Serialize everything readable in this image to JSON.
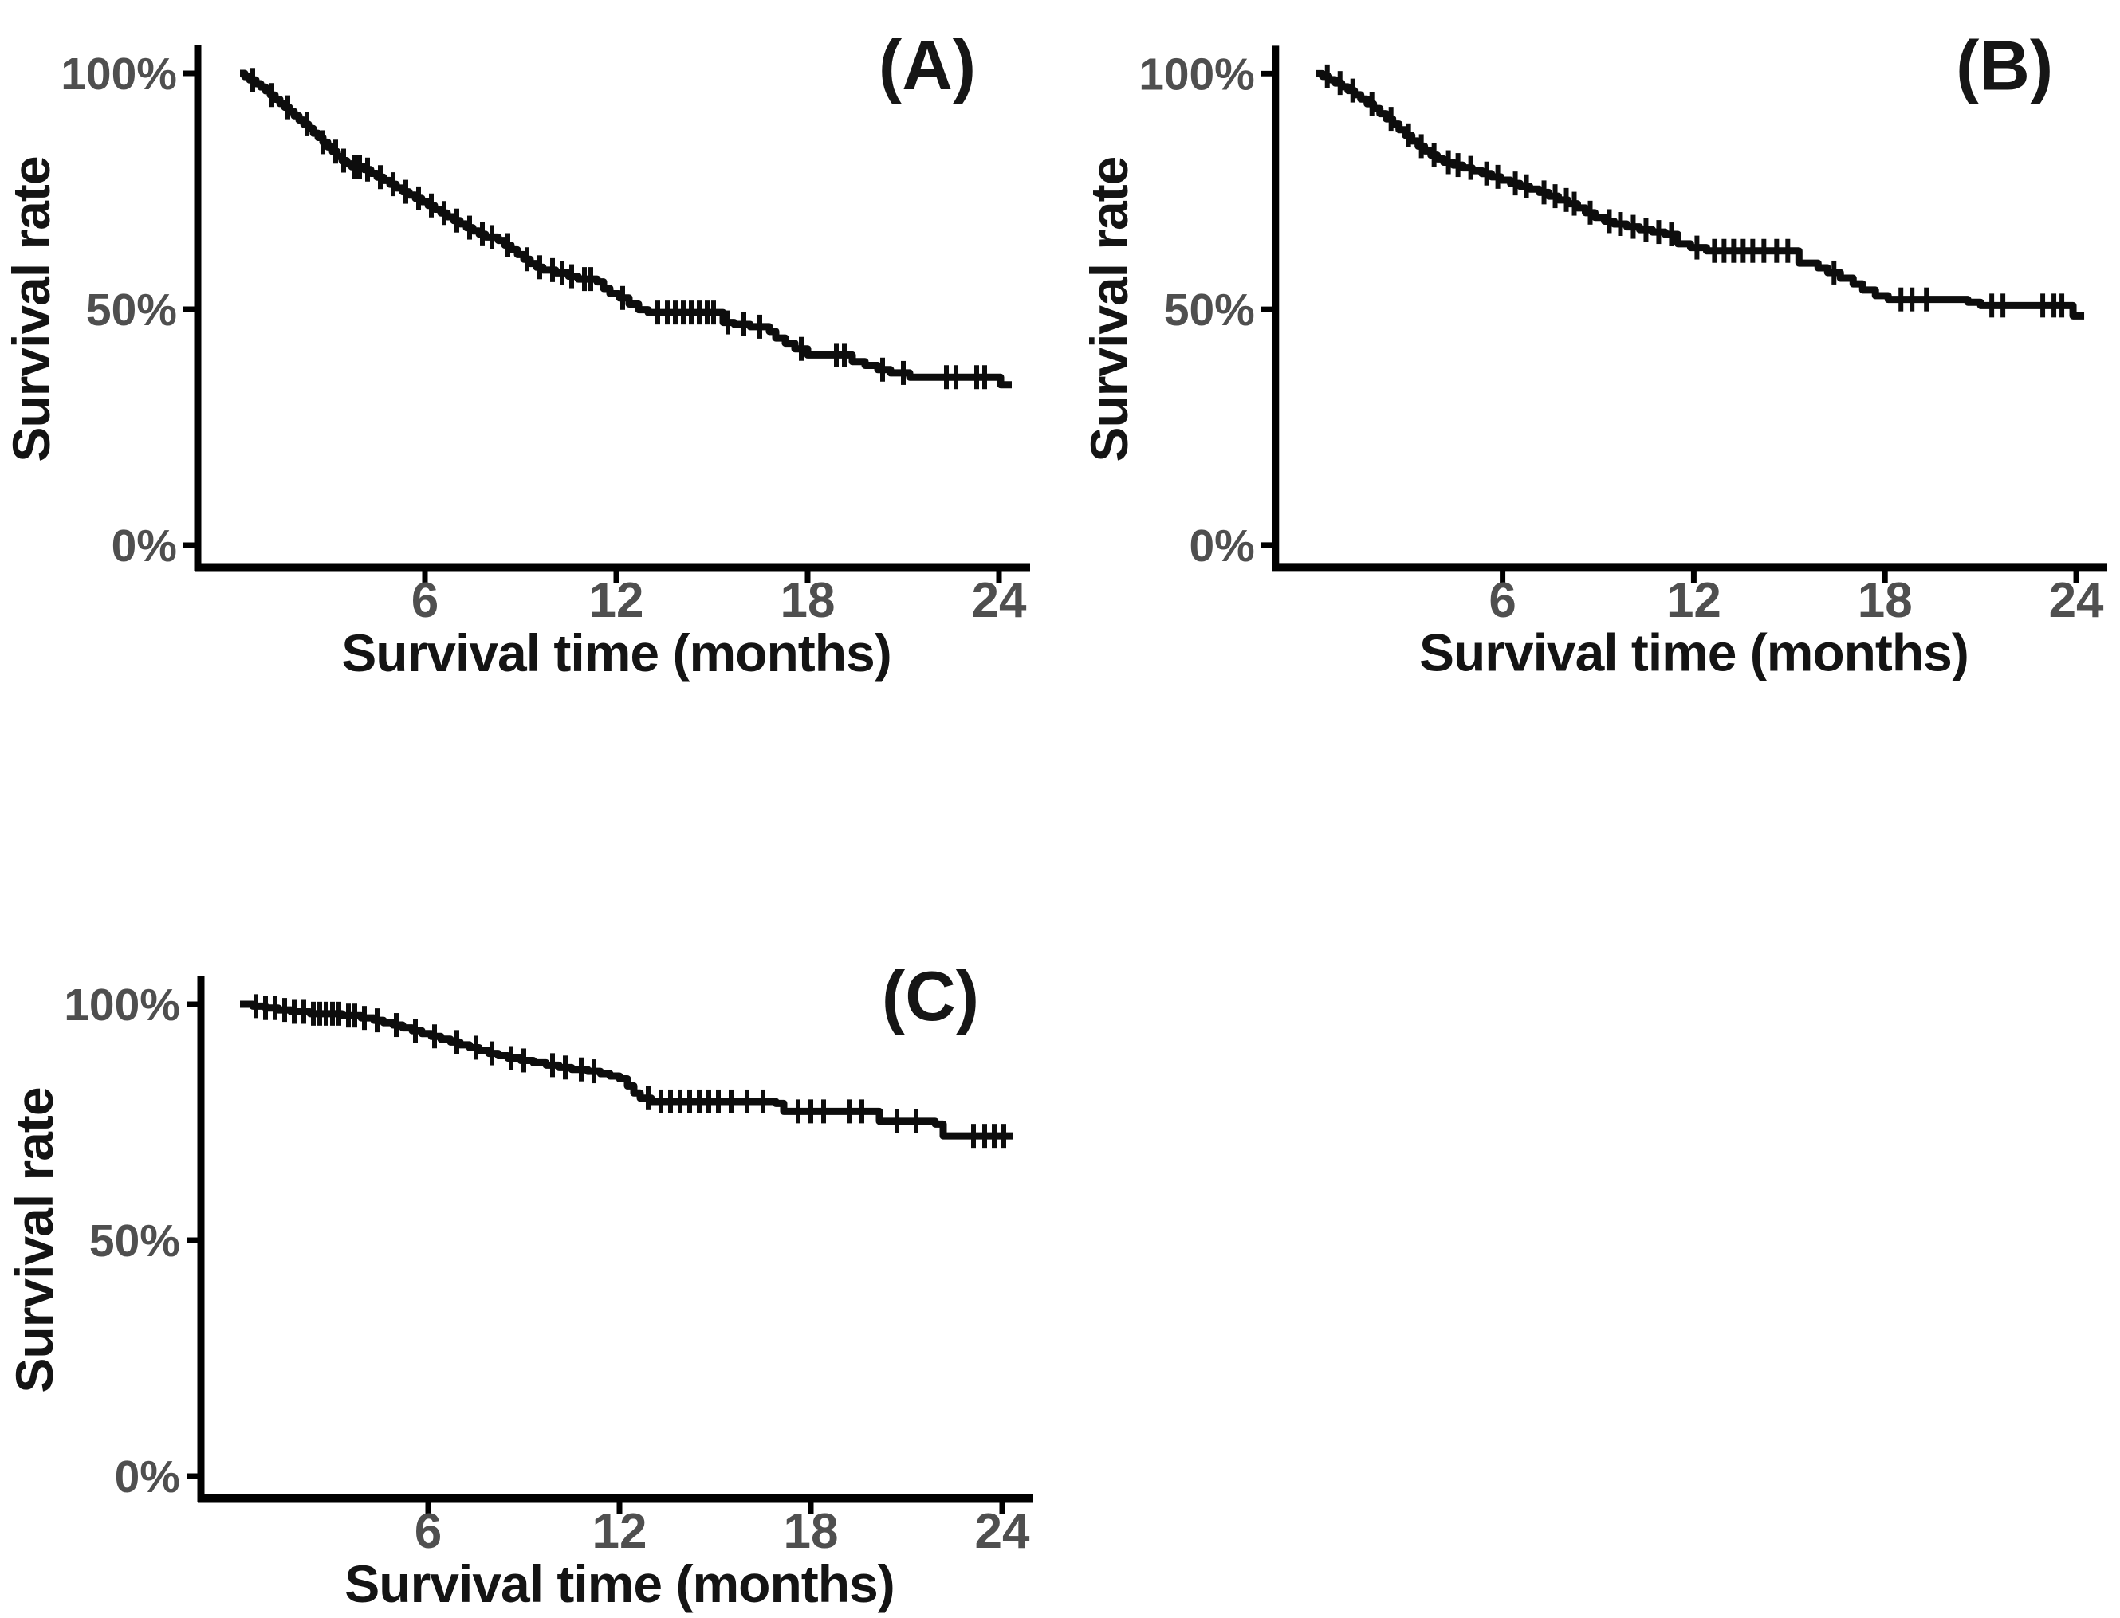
{
  "figure": {
    "background": "#ffffff",
    "axis_color": "#000000",
    "tick_label_color": "#4f4f4f",
    "text_color": "#141414",
    "curve_color": "#0d0d0d",
    "ylabel": "Survival rate",
    "xlabel": "Survival time (months)",
    "yticks": [
      {
        "label": "100%",
        "value": 100
      },
      {
        "label": "50%",
        "value": 50
      },
      {
        "label": "0%",
        "value": 0
      }
    ],
    "xticks": [
      {
        "label": "6",
        "value": 6
      },
      {
        "label": "12",
        "value": 12
      },
      {
        "label": "18",
        "value": 18
      },
      {
        "label": "24",
        "value": 24
      }
    ]
  },
  "chart_data": [
    {
      "panel": "A",
      "type": "line",
      "subtype": "kaplan-meier-step",
      "title": "(A)",
      "ylabel": "Survival rate",
      "xlabel": "Survival time (months)",
      "xlim": [
        0,
        24.5
      ],
      "ylim": [
        0,
        100
      ],
      "xtick_values": [
        6,
        12,
        18,
        24
      ],
      "ytick_labels": [
        "100%",
        "50%",
        "0%"
      ],
      "end_month": 24.4,
      "steps_month_percent": [
        [
          0.2,
          100
        ],
        [
          0.35,
          99.3
        ],
        [
          0.5,
          98.6
        ],
        [
          0.7,
          97.8
        ],
        [
          0.85,
          97.1
        ],
        [
          1.0,
          96.3
        ],
        [
          1.15,
          95.4
        ],
        [
          1.3,
          94.5
        ],
        [
          1.45,
          93.6
        ],
        [
          1.6,
          92.8
        ],
        [
          1.75,
          91.9
        ],
        [
          1.9,
          91.0
        ],
        [
          2.05,
          90.1
        ],
        [
          2.2,
          89.2
        ],
        [
          2.35,
          88.3
        ],
        [
          2.5,
          87.3
        ],
        [
          2.65,
          86.4
        ],
        [
          2.8,
          85.4
        ],
        [
          2.95,
          84.4
        ],
        [
          3.1,
          83.4
        ],
        [
          3.25,
          82.4
        ],
        [
          3.4,
          81.5
        ],
        [
          3.55,
          80.8
        ],
        [
          3.7,
          80.2
        ],
        [
          4.1,
          79.6
        ],
        [
          4.3,
          78.8
        ],
        [
          4.5,
          78.0
        ],
        [
          4.7,
          77.3
        ],
        [
          4.9,
          76.5
        ],
        [
          5.1,
          75.7
        ],
        [
          5.3,
          74.9
        ],
        [
          5.5,
          74.2
        ],
        [
          5.7,
          73.5
        ],
        [
          5.9,
          72.8
        ],
        [
          6.1,
          72.0
        ],
        [
          6.3,
          71.2
        ],
        [
          6.5,
          70.4
        ],
        [
          6.7,
          69.6
        ],
        [
          6.9,
          68.8
        ],
        [
          7.1,
          68.1
        ],
        [
          7.3,
          67.3
        ],
        [
          7.5,
          66.6
        ],
        [
          7.7,
          65.9
        ],
        [
          7.9,
          65.3
        ],
        [
          8.3,
          64.6
        ],
        [
          8.5,
          63.6
        ],
        [
          8.7,
          62.6
        ],
        [
          8.9,
          61.6
        ],
        [
          9.1,
          60.6
        ],
        [
          9.3,
          59.7
        ],
        [
          9.5,
          58.9
        ],
        [
          9.7,
          58.3
        ],
        [
          10.1,
          57.7
        ],
        [
          10.5,
          57.0
        ],
        [
          10.8,
          56.4
        ],
        [
          11.4,
          55.8
        ],
        [
          11.6,
          54.4
        ],
        [
          11.8,
          53.3
        ],
        [
          12.1,
          52.4
        ],
        [
          12.4,
          51.1
        ],
        [
          12.7,
          49.9
        ],
        [
          13.0,
          49.3
        ],
        [
          15.35,
          47.2
        ],
        [
          15.7,
          46.8
        ],
        [
          16.2,
          46.3
        ],
        [
          16.8,
          45.3
        ],
        [
          17.0,
          43.9
        ],
        [
          17.3,
          42.8
        ],
        [
          17.6,
          41.6
        ],
        [
          18.0,
          40.3
        ],
        [
          19.4,
          38.9
        ],
        [
          19.8,
          38.1
        ],
        [
          20.2,
          37.2
        ],
        [
          20.6,
          36.5
        ],
        [
          21.2,
          35.6
        ],
        [
          24.05,
          34.0
        ]
      ],
      "censor_marks_months": [
        0.6,
        1.2,
        1.7,
        2.3,
        2.8,
        3.2,
        3.45,
        3.8,
        3.95,
        4.2,
        4.6,
        5.0,
        5.4,
        5.8,
        6.2,
        6.6,
        7.0,
        7.4,
        7.8,
        8.1,
        8.6,
        9.2,
        9.6,
        10.0,
        10.3,
        10.6,
        11.0,
        11.2,
        12.2,
        13.3,
        13.6,
        13.85,
        14.1,
        14.35,
        14.6,
        14.85,
        15.05,
        15.5,
        16.0,
        16.5,
        17.8,
        18.9,
        19.15,
        20.35,
        21.0,
        22.35,
        22.65,
        23.3,
        23.55
      ]
    },
    {
      "panel": "B",
      "type": "line",
      "subtype": "kaplan-meier-step",
      "title": "(B)",
      "ylabel": "Survival rate",
      "xlabel": "Survival time (months)",
      "xlim": [
        0,
        24.5
      ],
      "ylim": [
        0,
        100
      ],
      "xtick_values": [
        6,
        12,
        18,
        24
      ],
      "ytick_labels": [
        "100%",
        "50%",
        "0%"
      ],
      "end_month": 24.25,
      "steps_month_percent": [
        [
          0.15,
          100
        ],
        [
          0.35,
          99.4
        ],
        [
          0.55,
          98.7
        ],
        [
          0.75,
          98.0
        ],
        [
          0.95,
          97.2
        ],
        [
          1.15,
          96.4
        ],
        [
          1.35,
          95.5
        ],
        [
          1.55,
          94.6
        ],
        [
          1.75,
          93.6
        ],
        [
          1.95,
          92.6
        ],
        [
          2.15,
          91.5
        ],
        [
          2.35,
          90.4
        ],
        [
          2.55,
          89.3
        ],
        [
          2.75,
          88.1
        ],
        [
          2.95,
          86.9
        ],
        [
          3.15,
          85.7
        ],
        [
          3.35,
          84.6
        ],
        [
          3.55,
          83.6
        ],
        [
          3.75,
          82.7
        ],
        [
          3.95,
          81.9
        ],
        [
          4.15,
          81.2
        ],
        [
          4.45,
          80.6
        ],
        [
          4.75,
          80.0
        ],
        [
          5.05,
          79.4
        ],
        [
          5.35,
          78.8
        ],
        [
          5.65,
          78.1
        ],
        [
          5.95,
          77.4
        ],
        [
          6.25,
          76.7
        ],
        [
          6.55,
          76.1
        ],
        [
          6.85,
          75.5
        ],
        [
          7.15,
          74.8
        ],
        [
          7.45,
          74.0
        ],
        [
          7.75,
          73.2
        ],
        [
          8.05,
          72.4
        ],
        [
          8.35,
          71.5
        ],
        [
          8.6,
          70.5
        ],
        [
          8.9,
          69.5
        ],
        [
          9.2,
          68.7
        ],
        [
          9.5,
          68.1
        ],
        [
          9.9,
          67.5
        ],
        [
          10.3,
          66.9
        ],
        [
          10.7,
          66.4
        ],
        [
          11.1,
          65.9
        ],
        [
          11.5,
          63.9
        ],
        [
          11.9,
          63.1
        ],
        [
          12.4,
          62.4
        ],
        [
          15.3,
          59.8
        ],
        [
          15.9,
          58.8
        ],
        [
          16.2,
          57.8
        ],
        [
          16.6,
          56.6
        ],
        [
          17.0,
          55.4
        ],
        [
          17.3,
          54.1
        ],
        [
          17.7,
          52.9
        ],
        [
          18.1,
          52.1
        ],
        [
          20.6,
          51.5
        ],
        [
          21.0,
          50.8
        ],
        [
          23.9,
          48.6
        ]
      ],
      "censor_marks_months": [
        0.5,
        0.9,
        1.3,
        1.9,
        2.5,
        3.05,
        3.45,
        3.85,
        4.3,
        4.6,
        5.0,
        5.5,
        5.85,
        6.4,
        6.75,
        7.3,
        7.65,
        8.0,
        8.25,
        8.75,
        9.35,
        9.7,
        10.1,
        10.5,
        10.9,
        11.3,
        12.1,
        12.65,
        12.95,
        13.25,
        13.55,
        13.85,
        14.2,
        14.6,
        14.95,
        16.4,
        18.5,
        18.85,
        19.3,
        21.35,
        21.7,
        22.95,
        23.3,
        23.55
      ]
    },
    {
      "panel": "C",
      "type": "line",
      "subtype": "kaplan-meier-step",
      "title": "(C)",
      "ylabel": "Survival rate",
      "xlabel": "Survival time (months)",
      "xlim": [
        0,
        24.5
      ],
      "ylim": [
        0,
        100
      ],
      "xtick_values": [
        6,
        12,
        18,
        24
      ],
      "ytick_labels": [
        "100%",
        "50%",
        "0%"
      ],
      "end_month": 24.35,
      "steps_month_percent": [
        [
          0.1,
          100
        ],
        [
          0.5,
          99.6
        ],
        [
          0.9,
          99.2
        ],
        [
          1.3,
          98.8
        ],
        [
          1.7,
          98.4
        ],
        [
          2.3,
          98.0
        ],
        [
          3.3,
          97.6
        ],
        [
          3.9,
          97.1
        ],
        [
          4.3,
          96.6
        ],
        [
          4.6,
          96.1
        ],
        [
          4.9,
          95.6
        ],
        [
          5.2,
          95.0
        ],
        [
          5.5,
          94.4
        ],
        [
          5.8,
          93.8
        ],
        [
          6.1,
          93.2
        ],
        [
          6.4,
          92.6
        ],
        [
          6.7,
          92.0
        ],
        [
          7.0,
          91.4
        ],
        [
          7.3,
          90.8
        ],
        [
          7.6,
          90.2
        ],
        [
          7.9,
          89.6
        ],
        [
          8.2,
          89.1
        ],
        [
          8.5,
          88.6
        ],
        [
          8.9,
          88.1
        ],
        [
          9.3,
          87.6
        ],
        [
          9.7,
          87.1
        ],
        [
          10.1,
          86.6
        ],
        [
          10.5,
          86.2
        ],
        [
          11.0,
          85.8
        ],
        [
          11.4,
          85.3
        ],
        [
          11.7,
          84.8
        ],
        [
          12.0,
          84.2
        ],
        [
          12.25,
          82.7
        ],
        [
          12.45,
          81.2
        ],
        [
          12.65,
          80.1
        ],
        [
          13.0,
          79.4
        ],
        [
          16.9,
          79.0
        ],
        [
          17.15,
          77.3
        ],
        [
          20.15,
          75.2
        ],
        [
          21.9,
          74.6
        ],
        [
          22.15,
          72.1
        ]
      ],
      "censor_marks_months": [
        0.6,
        0.9,
        1.2,
        1.5,
        1.8,
        2.1,
        2.4,
        2.6,
        2.8,
        3.0,
        3.2,
        3.5,
        3.7,
        4.0,
        4.4,
        5.0,
        5.6,
        6.2,
        6.9,
        7.5,
        8.0,
        8.6,
        9.0,
        9.9,
        10.3,
        10.8,
        11.2,
        12.9,
        13.3,
        13.6,
        13.9,
        14.2,
        14.5,
        14.8,
        15.1,
        15.5,
        16.0,
        16.5,
        17.6,
        18.0,
        18.4,
        19.2,
        19.6,
        20.7,
        21.3,
        23.1,
        23.45,
        23.75,
        24.05
      ]
    }
  ]
}
